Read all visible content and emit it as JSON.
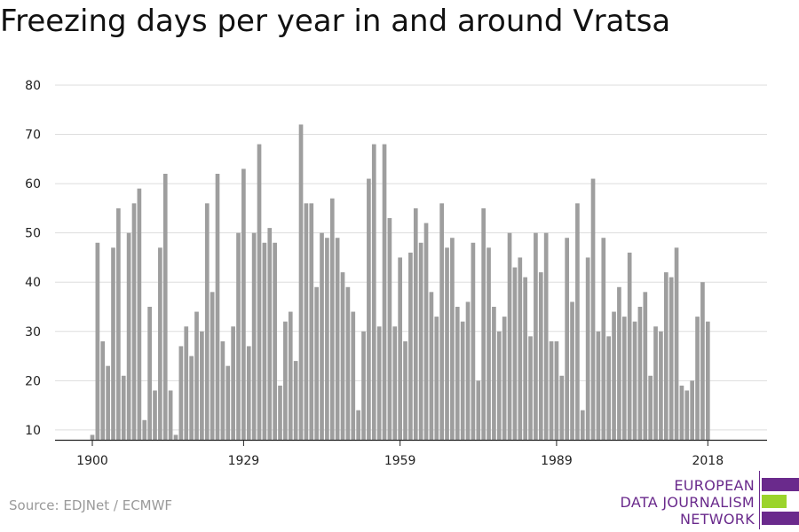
{
  "chart_data": {
    "type": "bar",
    "title": "Freezing days per year in and around Vratsa",
    "xlabel": "",
    "ylabel": "",
    "ylim": [
      8,
      80
    ],
    "yticks": [
      10,
      20,
      30,
      40,
      50,
      60,
      70,
      80
    ],
    "xticks": [
      1900,
      1929,
      1959,
      1989,
      2018
    ],
    "grid": true,
    "bar_color": "#9e9e9e",
    "x": [
      1900,
      1901,
      1902,
      1903,
      1904,
      1905,
      1906,
      1907,
      1908,
      1909,
      1910,
      1911,
      1912,
      1913,
      1914,
      1915,
      1916,
      1917,
      1918,
      1919,
      1920,
      1921,
      1922,
      1923,
      1924,
      1925,
      1926,
      1927,
      1928,
      1929,
      1930,
      1931,
      1932,
      1933,
      1934,
      1935,
      1936,
      1937,
      1938,
      1939,
      1940,
      1941,
      1942,
      1943,
      1944,
      1945,
      1946,
      1947,
      1948,
      1949,
      1950,
      1951,
      1952,
      1953,
      1954,
      1955,
      1956,
      1957,
      1958,
      1959,
      1960,
      1961,
      1962,
      1963,
      1964,
      1965,
      1966,
      1967,
      1968,
      1969,
      1970,
      1971,
      1972,
      1973,
      1974,
      1975,
      1976,
      1977,
      1978,
      1979,
      1980,
      1981,
      1982,
      1983,
      1984,
      1985,
      1986,
      1987,
      1988,
      1989,
      1990,
      1991,
      1992,
      1993,
      1994,
      1995,
      1996,
      1997,
      1998,
      1999,
      2000,
      2001,
      2002,
      2003,
      2004,
      2005,
      2006,
      2007,
      2008,
      2009,
      2010,
      2011,
      2012,
      2013,
      2014,
      2015,
      2016,
      2017,
      2018,
      2019,
      2020
    ],
    "values": [
      9,
      48,
      28,
      23,
      47,
      55,
      21,
      50,
      56,
      59,
      12,
      35,
      18,
      47,
      62,
      18,
      9,
      27,
      31,
      25,
      34,
      30,
      56,
      38,
      62,
      28,
      23,
      31,
      50,
      63,
      27,
      50,
      68,
      48,
      51,
      48,
      19,
      32,
      34,
      24,
      72,
      56,
      56,
      39,
      50,
      49,
      57,
      49,
      42,
      39,
      34,
      14,
      30,
      61,
      68,
      31,
      68,
      53,
      31,
      45,
      28,
      46,
      55,
      48,
      52,
      38,
      33,
      56,
      47,
      49,
      35,
      32,
      36,
      48,
      20,
      55,
      47,
      35,
      30,
      33,
      50,
      43,
      45,
      41,
      29,
      50,
      42,
      50,
      28,
      28,
      21,
      49,
      36,
      56,
      14,
      45,
      61,
      30,
      49,
      29,
      34,
      39,
      33,
      46,
      32,
      35,
      38,
      21,
      31,
      30,
      42,
      41,
      47,
      19,
      18,
      20,
      33,
      40,
      32,
      null,
      null
    ]
  },
  "source": "Source: EDJNet / ECMWF",
  "logo": {
    "line1": "EUROPEAN",
    "line2": "DATA JOURNALISM",
    "line3": "NETWORK",
    "purple": "#6a2a8c",
    "green": "#9bd42c"
  }
}
